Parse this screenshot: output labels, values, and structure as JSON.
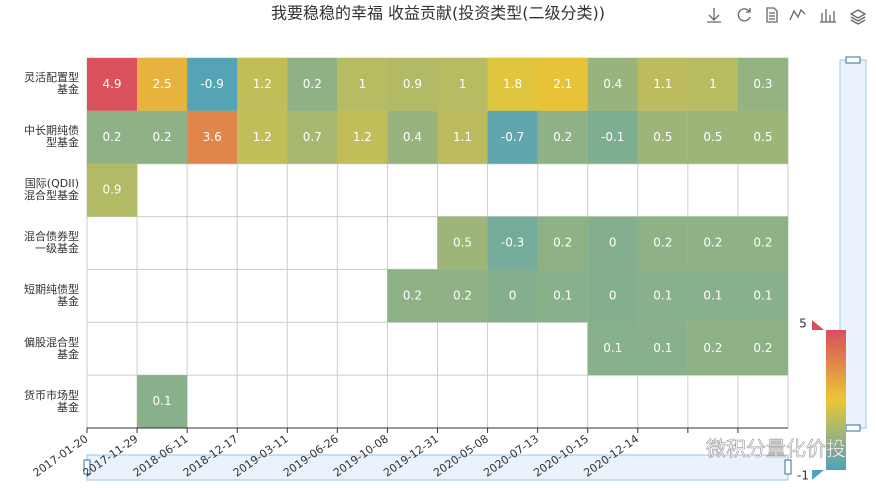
{
  "chart_data": {
    "type": "heatmap",
    "title": "我要稳稳的幸福 收益贡献(投资类型(二级分类))",
    "x": [
      "2017-01-20",
      "2017-11-29",
      "2018-06-11",
      "2018-12-17",
      "2019-03-11",
      "2019-06-26",
      "2019-10-08",
      "2019-12-31",
      "2020-05-08",
      "2020-07-13",
      "2020-10-15",
      "2020-12-14",
      null,
      null
    ],
    "y": [
      "灵活配置型基金",
      "中长期纯债型基金",
      "国际(QDII)混合型基金",
      "混合债券型一级基金",
      "短期纯债型基金",
      "偏股混合型基金",
      "货币市场型基金"
    ],
    "values": [
      [
        4.9,
        2.5,
        -0.9,
        1.2,
        0.2,
        1,
        0.9,
        1,
        1.8,
        2.1,
        0.4,
        1.1,
        1,
        0.3
      ],
      [
        0.2,
        0.2,
        3.6,
        1.2,
        0.7,
        1.2,
        0.4,
        1.1,
        -0.7,
        0.2,
        -0.1,
        0.5,
        0.5,
        0.5
      ],
      [
        0.9,
        null,
        null,
        null,
        null,
        null,
        null,
        null,
        null,
        null,
        null,
        null,
        null,
        null
      ],
      [
        null,
        null,
        null,
        null,
        null,
        null,
        null,
        0.5,
        -0.3,
        0.2,
        0,
        0.2,
        0.2,
        0.2
      ],
      [
        null,
        null,
        null,
        null,
        null,
        null,
        0.2,
        0.2,
        0,
        0.1,
        0,
        0.1,
        0.1,
        0.1
      ],
      [
        null,
        null,
        null,
        null,
        null,
        null,
        null,
        null,
        null,
        null,
        0.1,
        0.1,
        0.2,
        0.2
      ],
      [
        null,
        0.1,
        null,
        null,
        null,
        null,
        null,
        null,
        null,
        null,
        null,
        null,
        null,
        null
      ]
    ],
    "visual_range": [
      -1,
      5
    ],
    "colors": [
      "#50a3ba",
      "#eac736",
      "#d94e5d"
    ],
    "watermark": "微积分量化价投"
  }
}
